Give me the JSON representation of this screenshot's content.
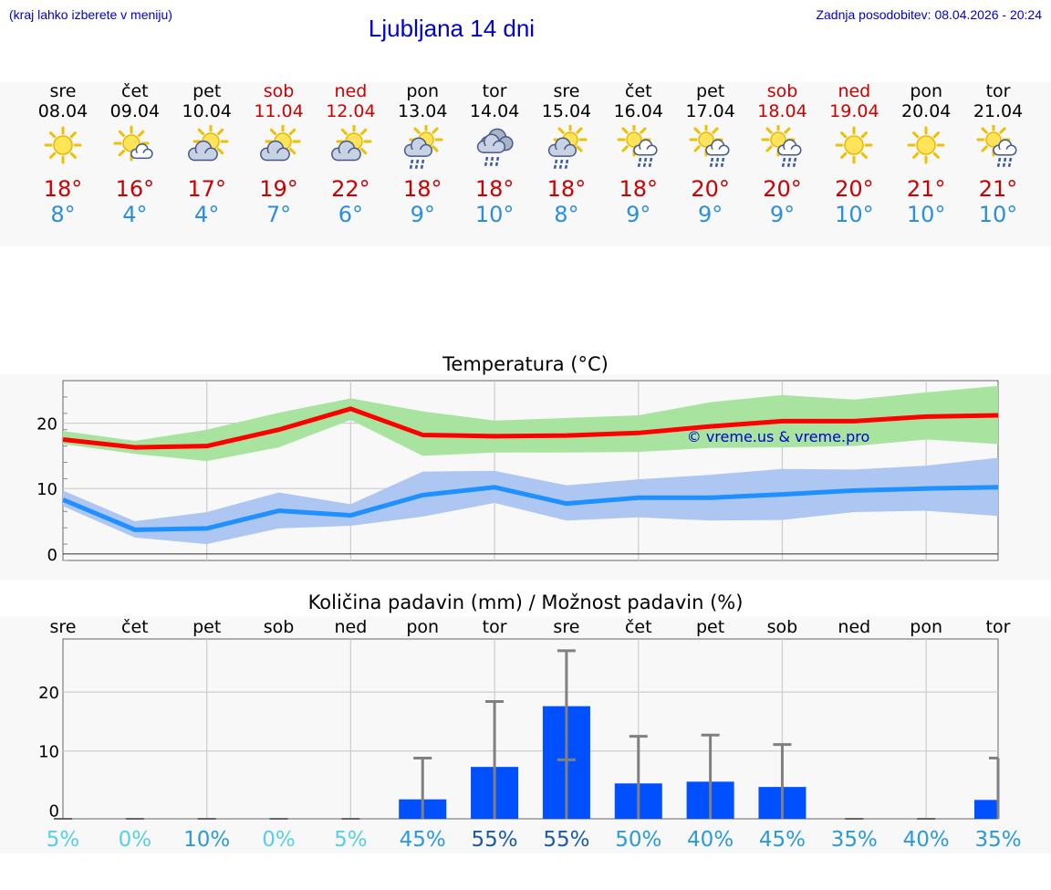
{
  "header": {
    "note": "(kraj lahko izberete v meniju)",
    "title": "Ljubljana 14 dni",
    "updated": "Zadnja posodobitev: 08.04.2026 - 20:24"
  },
  "days": [
    {
      "name": "sre",
      "date": "08.04",
      "weekend": false,
      "icon": "sun-icon",
      "max": "18°",
      "min": "8°"
    },
    {
      "name": "čet",
      "date": "09.04",
      "weekend": false,
      "icon": "sun-small-cloud-icon",
      "max": "16°",
      "min": "4°"
    },
    {
      "name": "pet",
      "date": "10.04",
      "weekend": false,
      "icon": "sun-cloud-icon",
      "max": "17°",
      "min": "4°"
    },
    {
      "name": "sob",
      "date": "11.04",
      "weekend": true,
      "icon": "sun-cloud-icon",
      "max": "19°",
      "min": "7°"
    },
    {
      "name": "ned",
      "date": "12.04",
      "weekend": true,
      "icon": "sun-cloud-icon",
      "max": "22°",
      "min": "6°"
    },
    {
      "name": "pon",
      "date": "13.04",
      "weekend": false,
      "icon": "sun-cloud-rain-icon",
      "max": "18°",
      "min": "9°"
    },
    {
      "name": "tor",
      "date": "14.04",
      "weekend": false,
      "icon": "cloud-rain-icon",
      "max": "18°",
      "min": "10°"
    },
    {
      "name": "sre",
      "date": "15.04",
      "weekend": false,
      "icon": "sun-cloud-rain-icon",
      "max": "18°",
      "min": "8°"
    },
    {
      "name": "čet",
      "date": "16.04",
      "weekend": false,
      "icon": "sun-small-cloud-rain-icon",
      "max": "18°",
      "min": "9°"
    },
    {
      "name": "pet",
      "date": "17.04",
      "weekend": false,
      "icon": "sun-small-cloud-rain-icon",
      "max": "20°",
      "min": "9°"
    },
    {
      "name": "sob",
      "date": "18.04",
      "weekend": true,
      "icon": "sun-small-cloud-rain-icon",
      "max": "20°",
      "min": "9°"
    },
    {
      "name": "ned",
      "date": "19.04",
      "weekend": true,
      "icon": "sun-icon",
      "max": "20°",
      "min": "10°"
    },
    {
      "name": "pon",
      "date": "20.04",
      "weekend": false,
      "icon": "sun-icon",
      "max": "21°",
      "min": "10°"
    },
    {
      "name": "tor",
      "date": "21.04",
      "weekend": false,
      "icon": "sun-small-cloud-rain-icon",
      "max": "21°",
      "min": "10°"
    }
  ],
  "colors": {
    "weekend": "#cc0000",
    "max_line": "#ff0000",
    "max_band": "#a8e4a0",
    "min_line": "#1e90ff",
    "min_band": "#aec6f2",
    "bar": "#0050ff",
    "whisker": "#808080",
    "watermark": "#0000cc"
  },
  "chart_data": [
    {
      "type": "line",
      "title": "Temperatura (°C)",
      "yticks": [
        "0",
        "10",
        "20"
      ],
      "ylim": [
        -1,
        26.5
      ],
      "watermark": "© vreme.us & vreme.pro",
      "x": [
        0,
        1,
        2,
        3,
        4,
        5,
        6,
        7,
        8,
        9,
        10,
        11,
        12,
        13
      ],
      "series": [
        {
          "role": "max",
          "values": [
            17.5,
            16.3,
            16.5,
            19.0,
            22.2,
            18.2,
            18.0,
            18.1,
            18.5,
            19.5,
            20.3,
            20.3,
            21.0,
            21.2
          ],
          "low": [
            16.8,
            15.3,
            14.2,
            16.3,
            20.5,
            15.0,
            15.5,
            15.5,
            15.6,
            16.2,
            16.3,
            16.5,
            17.5,
            16.8
          ],
          "high": [
            18.8,
            17.3,
            19.0,
            21.6,
            23.8,
            21.8,
            20.4,
            20.8,
            21.2,
            23.2,
            24.3,
            23.6,
            24.7,
            25.7
          ]
        },
        {
          "role": "min",
          "values": [
            8.3,
            3.7,
            3.9,
            6.6,
            5.9,
            9.0,
            10.2,
            7.7,
            8.6,
            8.6,
            9.1,
            9.7,
            10.0,
            10.2
          ],
          "low": [
            7.3,
            2.5,
            1.5,
            3.9,
            4.3,
            5.7,
            7.8,
            5.1,
            5.6,
            5.1,
            5.2,
            6.4,
            6.6,
            5.8
          ],
          "high": [
            9.7,
            5.0,
            6.4,
            9.4,
            7.6,
            12.6,
            12.7,
            10.5,
            11.4,
            12.1,
            13.0,
            12.9,
            13.5,
            14.7
          ]
        }
      ]
    },
    {
      "type": "bar",
      "title": "Količina padavin (mm) / Možnost padavin (%)",
      "categories": [
        "sre",
        "čet",
        "pet",
        "sob",
        "ned",
        "pon",
        "tor",
        "sre",
        "čet",
        "pet",
        "sob",
        "ned",
        "pon",
        "tor"
      ],
      "yticks": [
        "0",
        "10",
        "20"
      ],
      "ylim": [
        -1.5,
        29
      ],
      "values": [
        0,
        0,
        0,
        0,
        0,
        1.8,
        7.3,
        17.6,
        4.5,
        4.8,
        3.9,
        0,
        0,
        1.7
      ],
      "whisker_high": [
        0,
        0,
        0,
        0,
        0,
        8.8,
        18.4,
        27.0,
        12.5,
        12.7,
        11.1,
        0,
        0,
        8.8
      ],
      "whisker_low": [
        0,
        0,
        0,
        0,
        0,
        0,
        0,
        8.5,
        0,
        0,
        0,
        0,
        0,
        0
      ],
      "probabilities": [
        "5%",
        "0%",
        "10%",
        "0%",
        "5%",
        "45%",
        "55%",
        "55%",
        "50%",
        "40%",
        "45%",
        "35%",
        "40%",
        "35%"
      ],
      "prob_colors": [
        "#55d0e8",
        "#55d0e8",
        "#2a9ad8",
        "#55d0e8",
        "#55d0e8",
        "#2a9ad8",
        "#1a5aa8",
        "#1a5aa8",
        "#2a9ad8",
        "#2a9ad8",
        "#2a9ad8",
        "#2a9ad8",
        "#2a9ad8",
        "#2a9ad8"
      ]
    }
  ]
}
